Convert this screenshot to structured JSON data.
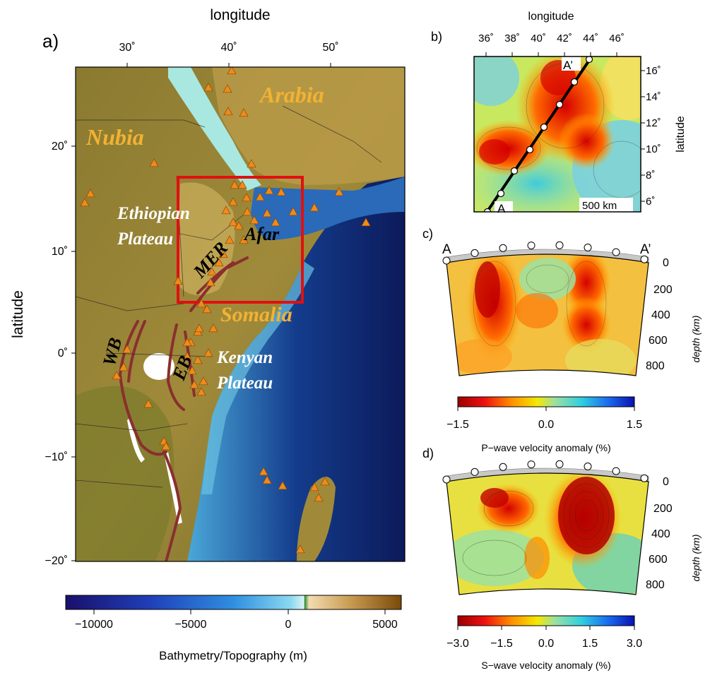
{
  "panel_a": {
    "label": "a)",
    "x_axis_title": "longitude",
    "y_axis_title": "latitude",
    "x_ticks": [
      "30˚",
      "40˚",
      "50˚"
    ],
    "y_ticks": [
      "20˚",
      "10˚",
      "0˚",
      "−10˚",
      "−20˚"
    ],
    "place_labels": {
      "nubia": "Nubia",
      "arabia": "Arabia",
      "somalia": "Somalia",
      "ethiopian_plateau_1": "Ethiopian",
      "ethiopian_plateau_2": "Plateau",
      "kenyan_plateau_1": "Kenyan",
      "kenyan_plateau_2": "Plateau",
      "afar": "Afar",
      "mer": "MER",
      "wb": "WB",
      "eb": "EB"
    },
    "study_box_color": "#e01010",
    "volcano_color": "#f08a1c",
    "place_label_color": "#f2b233"
  },
  "colorbar_topo": {
    "title": "Bathymetry/Topography (m)",
    "ticks": [
      "−10000",
      "−5000",
      "0",
      "5000"
    ]
  },
  "panel_b": {
    "label": "b)",
    "x_axis_title": "longitude",
    "y_axis_title": "latitude",
    "x_ticks": [
      "36˚",
      "38˚",
      "40˚",
      "42˚",
      "44˚",
      "46˚"
    ],
    "y_ticks": [
      "16˚",
      "14˚",
      "12˚",
      "10˚",
      "8˚",
      "6˚"
    ],
    "start_label": "A",
    "end_label": "A’",
    "scale_label": "500 km"
  },
  "panel_c": {
    "label": "c)",
    "start_label": "A",
    "end_label": "A’",
    "depth_title": "depth (km)",
    "depth_ticks": [
      "0",
      "200",
      "400",
      "600",
      "800"
    ],
    "colorbar_title": "P−wave velocity anomaly (%)",
    "colorbar_ticks": [
      "−1.5",
      "0.0",
      "1.5"
    ]
  },
  "panel_d": {
    "label": "d)",
    "depth_title": "depth (km)",
    "depth_ticks": [
      "0",
      "200",
      "400",
      "600",
      "800"
    ],
    "colorbar_title": "S−wave velocity anomaly (%)",
    "colorbar_ticks": [
      "−3.0",
      "−1.5",
      "0.0",
      "1.5",
      "3.0"
    ]
  }
}
